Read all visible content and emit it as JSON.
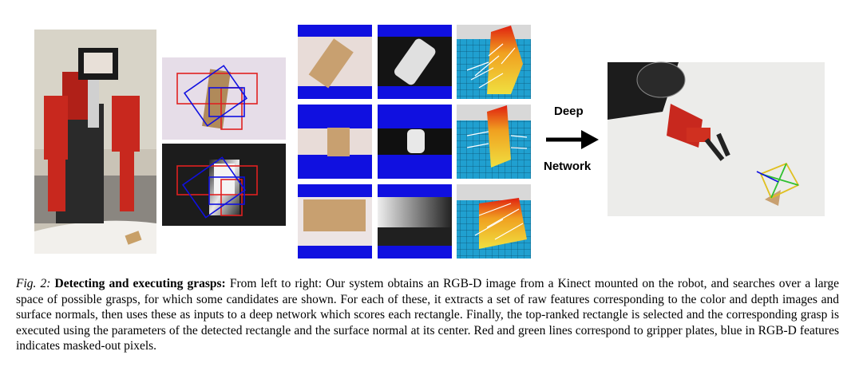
{
  "figure": {
    "arrow_label_top": "Deep",
    "arrow_label_bottom": "Network"
  },
  "caption": {
    "figure_number": "Fig. 2:",
    "title": "Detecting and executing grasps:",
    "text": "From left to right: Our system obtains an RGB-D image from a Kinect mounted on the robot, and searches over a large space of possible grasps, for which some candidates are shown. For each of these, it extracts a set of raw features corresponding to the color and depth images and surface normals, then uses these as inputs to a deep network which scores each rectangle. Finally, the top-ranked rectangle is selected and the corresponding grasp is executed using the parameters of the detected rectangle and the surface normal at its center. Red and green lines correspond to gripper plates, blue in RGB-D features indicates masked-out pixels."
  },
  "colors": {
    "mask_blue": "#1010e0",
    "gripper_red": "#e02020",
    "gripper_green": "#30c030",
    "robot_red": "#c8281e"
  }
}
